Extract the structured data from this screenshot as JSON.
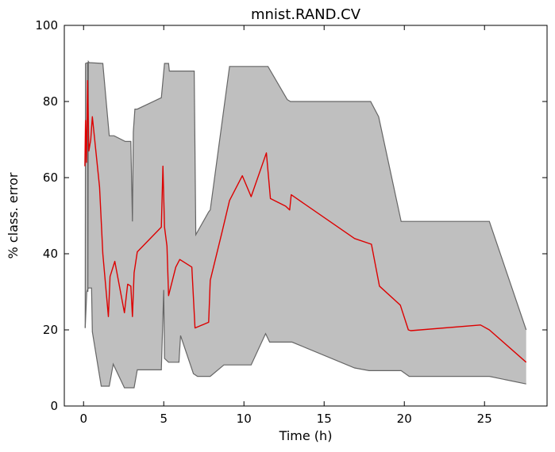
{
  "chart_data": {
    "type": "area",
    "title": "mnist.RAND.CV",
    "xlabel": "Time (h)",
    "ylabel": "% class. error",
    "xlim": [
      -1.2,
      28.9
    ],
    "ylim": [
      0,
      100
    ],
    "x_ticks": [
      0,
      5,
      10,
      15,
      20,
      25
    ],
    "y_ticks": [
      0,
      20,
      40,
      60,
      80,
      100
    ],
    "grid": false,
    "colors": {
      "band_fill": "#bfbfbf",
      "band_edge": "#666666",
      "line": "#dd0000",
      "axis": "#000000"
    },
    "band_upper": [
      [
        0.1,
        20.5
      ],
      [
        0.12,
        90.0
      ],
      [
        0.25,
        90.2
      ],
      [
        0.27,
        30.0
      ],
      [
        0.3,
        90.5
      ],
      [
        0.35,
        90.2
      ],
      [
        1.2,
        90.0
      ],
      [
        1.6,
        71.0
      ],
      [
        1.9,
        71.0
      ],
      [
        2.6,
        69.5
      ],
      [
        2.95,
        69.5
      ],
      [
        3.05,
        48.5
      ],
      [
        3.1,
        72.0
      ],
      [
        3.2,
        78.0
      ],
      [
        3.35,
        78.0
      ],
      [
        4.85,
        81.0
      ],
      [
        5.05,
        90.0
      ],
      [
        5.3,
        90.0
      ],
      [
        5.35,
        88.0
      ],
      [
        6.9,
        88.0
      ],
      [
        7.0,
        45.0
      ],
      [
        7.8,
        51.0
      ],
      [
        7.9,
        51.5
      ],
      [
        9.1,
        89.2
      ],
      [
        11.5,
        89.2
      ],
      [
        12.7,
        80.5
      ],
      [
        12.9,
        80.0
      ],
      [
        17.9,
        80.0
      ],
      [
        18.4,
        76.0
      ],
      [
        19.8,
        48.5
      ],
      [
        25.3,
        48.5
      ],
      [
        27.6,
        20.0
      ]
    ],
    "band_lower": [
      [
        0.1,
        20.5
      ],
      [
        0.2,
        30.0
      ],
      [
        0.3,
        31.0
      ],
      [
        0.5,
        31.0
      ],
      [
        0.55,
        19.5
      ],
      [
        1.1,
        5.2
      ],
      [
        1.6,
        5.2
      ],
      [
        1.85,
        11.0
      ],
      [
        2.55,
        4.8
      ],
      [
        3.15,
        4.8
      ],
      [
        3.35,
        9.5
      ],
      [
        4.85,
        9.5
      ],
      [
        5.0,
        30.5
      ],
      [
        5.05,
        12.5
      ],
      [
        5.3,
        11.5
      ],
      [
        5.95,
        11.5
      ],
      [
        6.05,
        18.5
      ],
      [
        6.85,
        8.5
      ],
      [
        7.1,
        7.8
      ],
      [
        7.9,
        7.8
      ],
      [
        8.75,
        10.8
      ],
      [
        10.45,
        10.8
      ],
      [
        11.35,
        19.0
      ],
      [
        11.6,
        16.8
      ],
      [
        13.0,
        16.8
      ],
      [
        16.9,
        10.0
      ],
      [
        17.8,
        9.3
      ],
      [
        19.8,
        9.3
      ],
      [
        20.3,
        7.8
      ],
      [
        25.3,
        7.8
      ],
      [
        27.6,
        5.8
      ]
    ],
    "series": [
      {
        "values": [
          [
            0.08,
            63.0
          ],
          [
            0.12,
            75.0
          ],
          [
            0.18,
            64.0
          ],
          [
            0.25,
            85.5
          ],
          [
            0.33,
            67.0
          ],
          [
            0.45,
            70.0
          ],
          [
            0.55,
            76.0
          ],
          [
            1.0,
            57.5
          ],
          [
            1.2,
            40.0
          ],
          [
            1.55,
            23.5
          ],
          [
            1.65,
            34.0
          ],
          [
            1.95,
            38.0
          ],
          [
            2.55,
            24.5
          ],
          [
            2.75,
            32.0
          ],
          [
            2.95,
            31.5
          ],
          [
            3.05,
            23.5
          ],
          [
            3.15,
            35.0
          ],
          [
            3.35,
            40.5
          ],
          [
            4.85,
            47.0
          ],
          [
            4.95,
            63.0
          ],
          [
            5.05,
            47.0
          ],
          [
            5.2,
            42.0
          ],
          [
            5.3,
            29.0
          ],
          [
            5.75,
            36.5
          ],
          [
            6.0,
            38.5
          ],
          [
            6.75,
            36.5
          ],
          [
            6.95,
            20.5
          ],
          [
            7.8,
            22.0
          ],
          [
            7.9,
            33.0
          ],
          [
            8.65,
            46.0
          ],
          [
            9.1,
            54.0
          ],
          [
            9.9,
            60.5
          ],
          [
            10.45,
            55.0
          ],
          [
            11.4,
            66.5
          ],
          [
            11.65,
            54.5
          ],
          [
            12.6,
            52.5
          ],
          [
            12.85,
            51.5
          ],
          [
            12.95,
            55.5
          ],
          [
            16.9,
            44.0
          ],
          [
            17.95,
            42.5
          ],
          [
            18.45,
            31.5
          ],
          [
            19.75,
            26.5
          ],
          [
            20.25,
            20.0
          ],
          [
            20.4,
            19.8
          ],
          [
            24.75,
            21.3
          ],
          [
            25.3,
            20.0
          ],
          [
            27.6,
            11.5
          ]
        ]
      }
    ]
  }
}
